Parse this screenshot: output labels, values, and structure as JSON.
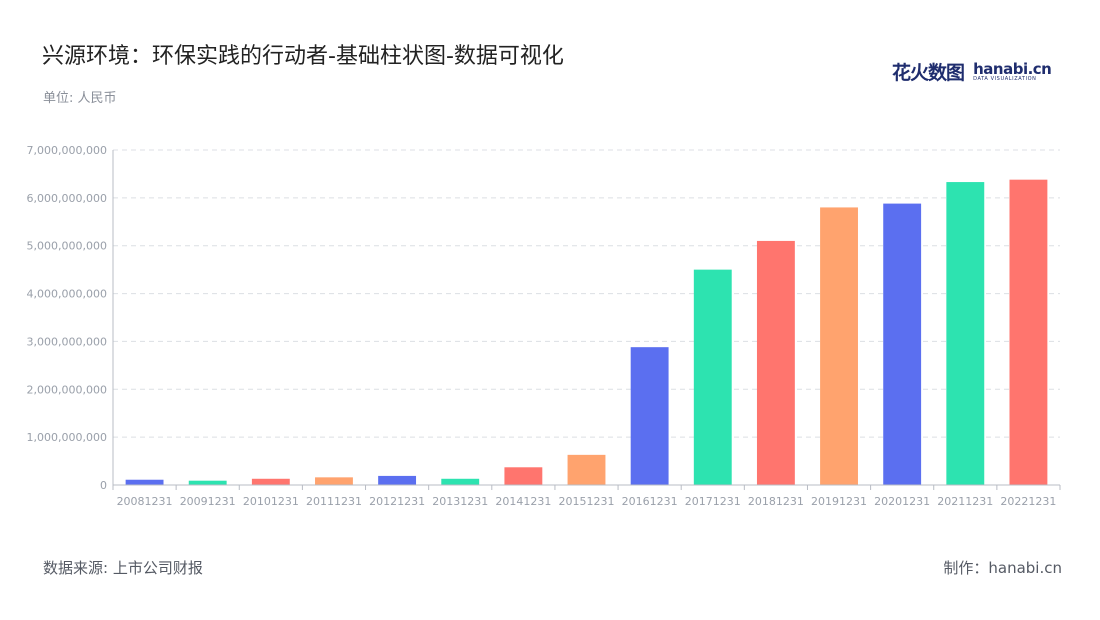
{
  "header": {
    "title": "兴源环境：环保实践的行动者-基础柱状图-数据可视化",
    "unit": "单位: 人民币"
  },
  "logo": {
    "cn": "花火数图",
    "en": "hanabi.cn",
    "sub": "DATA VISUALIZATION"
  },
  "footer": {
    "source": "数据来源: 上市公司财报",
    "credit": "制作：hanabi.cn"
  },
  "colors": {
    "palette": [
      "#5b6ff0",
      "#2de3b0",
      "#ff756e",
      "#ffa36e"
    ],
    "grid": "#dcdfe4",
    "axis": "#b8bcc4"
  },
  "chart_data": {
    "type": "bar",
    "categories": [
      "20081231",
      "20091231",
      "20101231",
      "20111231",
      "20121231",
      "20131231",
      "20141231",
      "20151231",
      "20161231",
      "20171231",
      "20181231",
      "20191231",
      "20201231",
      "20211231",
      "20221231"
    ],
    "values": [
      110000000,
      90000000,
      130000000,
      160000000,
      190000000,
      130000000,
      370000000,
      630000000,
      2880000000,
      4500000000,
      5100000000,
      5800000000,
      5880000000,
      6330000000,
      6380000000
    ],
    "bar_colors": [
      "#5b6ff0",
      "#2de3b0",
      "#ff756e",
      "#ffa36e",
      "#5b6ff0",
      "#2de3b0",
      "#ff756e",
      "#ffa36e",
      "#5b6ff0",
      "#2de3b0",
      "#ff756e",
      "#ffa36e",
      "#5b6ff0",
      "#2de3b0",
      "#ff756e"
    ],
    "ylim": [
      0,
      7000000000
    ],
    "yticks": [
      0,
      1000000000,
      2000000000,
      3000000000,
      4000000000,
      5000000000,
      6000000000,
      7000000000
    ],
    "ytick_labels": [
      "0",
      "1,000,000,000",
      "2,000,000,000",
      "3,000,000,000",
      "4,000,000,000",
      "5,000,000,000",
      "6,000,000,000",
      "7,000,000,000"
    ],
    "grid": true,
    "legend": "none",
    "xlabel": "",
    "ylabel": ""
  }
}
